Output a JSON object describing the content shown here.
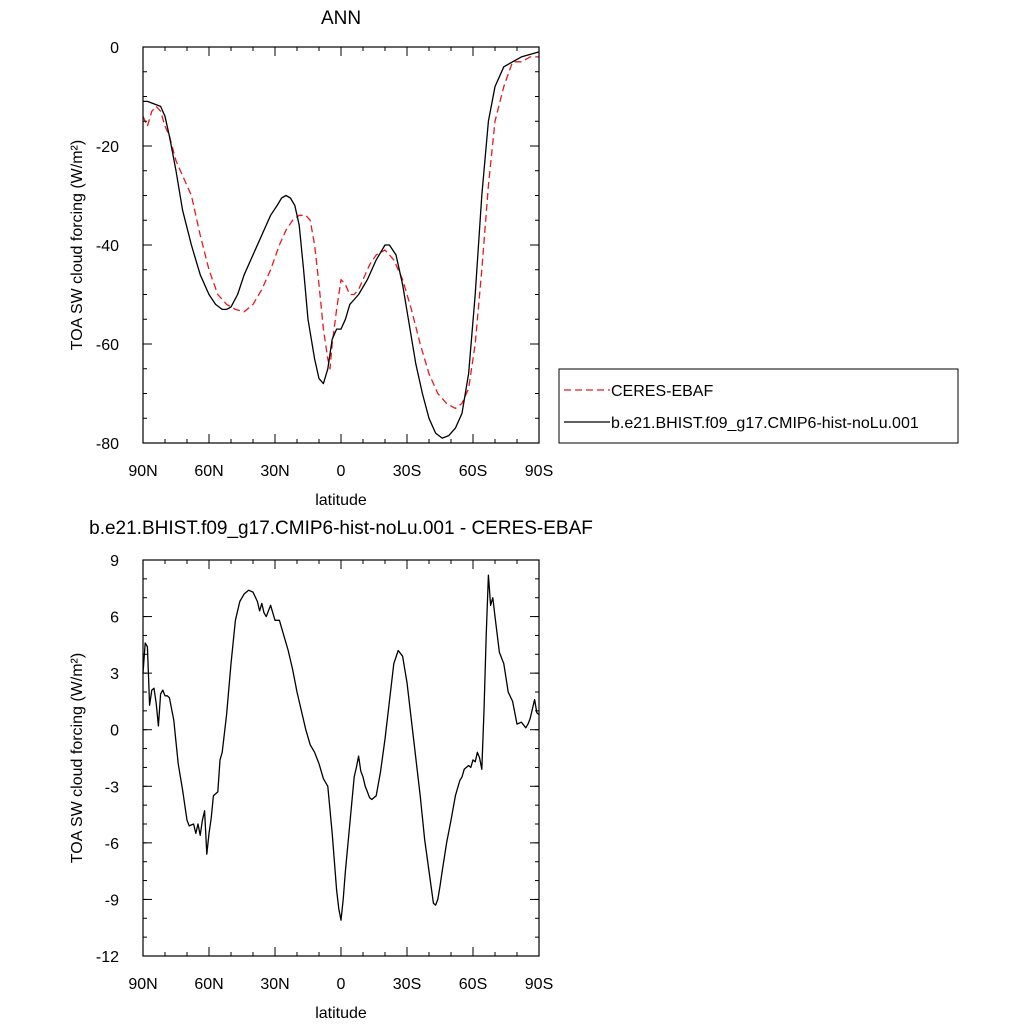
{
  "chart_data": [
    {
      "type": "line",
      "title": "ANN",
      "xlabel": "latitude",
      "ylabel": "TOA SW cloud forcing (W/m²)",
      "ylim": [
        -80,
        0
      ],
      "xlim": [
        90,
        -90
      ],
      "x_ticks": [
        "90N",
        "60N",
        "30N",
        "0",
        "30S",
        "60S",
        "90S"
      ],
      "y_ticks": [
        "0",
        "-20",
        "-40",
        "-60",
        "-80"
      ],
      "legend_position": "right",
      "series": [
        {
          "name": "CERES-EBAF",
          "color": "#e41a1c",
          "dash": "dashed",
          "x": [
            90,
            88,
            86,
            84,
            82,
            80,
            78,
            75,
            72,
            68,
            64,
            60,
            56,
            52,
            48,
            44,
            40,
            36,
            32,
            28,
            25,
            22,
            19,
            16,
            14,
            12,
            10,
            8,
            6,
            5,
            4,
            2,
            0,
            -2,
            -4,
            -6,
            -8,
            -10,
            -13,
            -16,
            -20,
            -24,
            -28,
            -32,
            -36,
            -40,
            -44,
            -48,
            -52,
            -55,
            -58,
            -61,
            -64,
            -67,
            -70,
            -74,
            -78,
            -82,
            -86,
            -90
          ],
          "y": [
            -14,
            -16,
            -13,
            -12,
            -13,
            -16,
            -18,
            -23,
            -26,
            -30,
            -38,
            -45,
            -50,
            -52,
            -53,
            -53.5,
            -52,
            -49,
            -45,
            -40,
            -37,
            -35,
            -34,
            -34,
            -35,
            -40,
            -48,
            -57,
            -63,
            -65,
            -60,
            -53,
            -47,
            -48,
            -50,
            -50,
            -49,
            -47,
            -44,
            -42,
            -41,
            -43,
            -47,
            -53,
            -60,
            -66,
            -70,
            -72,
            -73,
            -72,
            -69,
            -60,
            -45,
            -28,
            -15,
            -8,
            -3,
            -3,
            -2,
            -2
          ]
        },
        {
          "name": "b.e21.BHIST.f09_g17.CMIP6-hist-noLu.001",
          "color": "#000000",
          "dash": "solid",
          "x": [
            90,
            88,
            85,
            82,
            80,
            78,
            75,
            72,
            68,
            64,
            60,
            57,
            54,
            52,
            50,
            47,
            44,
            40,
            36,
            32,
            29,
            27,
            25,
            23,
            21,
            19,
            17,
            15,
            12,
            10,
            8,
            6,
            5,
            4,
            2,
            0,
            -2,
            -4,
            -6,
            -8,
            -12,
            -16,
            -20,
            -22,
            -25,
            -28,
            -31,
            -34,
            -37,
            -40,
            -43,
            -46,
            -49,
            -52,
            -55,
            -58,
            -61,
            -64,
            -67,
            -70,
            -74,
            -78,
            -82,
            -86,
            -90
          ],
          "y": [
            -11,
            -11,
            -11.5,
            -12,
            -14,
            -18,
            -25,
            -33,
            -40,
            -46,
            -50,
            -52,
            -53,
            -53,
            -52.5,
            -50,
            -46,
            -42,
            -38,
            -34,
            -32,
            -30.5,
            -30,
            -30.5,
            -32,
            -36,
            -45,
            -55,
            -63,
            -67,
            -68,
            -65,
            -62,
            -59,
            -57,
            -57,
            -55,
            -52,
            -51,
            -50,
            -47,
            -43,
            -40,
            -40,
            -42,
            -48,
            -56,
            -64,
            -70,
            -75,
            -78,
            -79,
            -78.5,
            -77,
            -74,
            -66,
            -50,
            -30,
            -15,
            -8,
            -4,
            -3,
            -2,
            -1.5,
            -1
          ]
        }
      ]
    },
    {
      "type": "line",
      "title": "b.e21.BHIST.f09_g17.CMIP6-hist-noLu.001 - CERES-EBAF",
      "xlabel": "latitude",
      "ylabel": "TOA SW cloud forcing (W/m²)",
      "ylim": [
        -12,
        9
      ],
      "xlim": [
        90,
        -90
      ],
      "x_ticks": [
        "90N",
        "60N",
        "30N",
        "0",
        "30S",
        "60S",
        "90S"
      ],
      "y_ticks": [
        "9",
        "6",
        "3",
        "0",
        "-3",
        "-6",
        "-9",
        "-12"
      ],
      "series": [
        {
          "color": "#000000",
          "dash": "solid",
          "x": [
            90,
            89,
            88,
            87,
            86,
            85,
            84,
            83,
            82,
            81,
            80,
            79,
            78,
            76,
            74,
            72,
            70,
            69,
            67,
            66,
            65,
            64,
            63,
            62,
            61,
            60,
            59,
            58,
            56,
            55,
            54,
            52,
            50,
            48,
            46,
            45,
            44,
            42,
            40,
            38,
            37,
            36,
            35,
            34,
            32,
            30,
            28,
            26,
            24,
            22,
            20,
            18,
            16,
            14,
            12,
            10,
            8,
            6,
            4,
            2,
            1,
            0,
            -1,
            -2,
            -4,
            -6,
            -7,
            -8,
            -9,
            -10,
            -11,
            -12,
            -13,
            -14,
            -16,
            -18,
            -20,
            -22,
            -24,
            -26,
            -28,
            -30,
            -32,
            -34,
            -36,
            -38,
            -40,
            -42,
            -43,
            -44,
            -45,
            -46,
            -48,
            -50,
            -52,
            -54,
            -55,
            -56,
            -58,
            -59,
            -60,
            -61,
            -62,
            -63,
            -64,
            -65,
            -66,
            -67,
            -68,
            -69,
            -70,
            -72,
            -74,
            -76,
            -78,
            -80,
            -82,
            -84,
            -85,
            -86,
            -88,
            -89,
            -90
          ],
          "y": [
            3,
            4.6,
            4.4,
            1.3,
            2.1,
            2.2,
            1.4,
            0.2,
            1.9,
            2.1,
            1.8,
            1.8,
            1.7,
            0.5,
            -1.8,
            -3.2,
            -4.8,
            -5.1,
            -5.0,
            -5.5,
            -5.0,
            -5.6,
            -4.8,
            -4.3,
            -6.6,
            -5.5,
            -4.7,
            -3.5,
            -3.3,
            -1.6,
            -1.2,
            0.8,
            3.5,
            5.8,
            6.8,
            7.0,
            7.2,
            7.4,
            7.3,
            6.8,
            6.3,
            6.7,
            6.2,
            6.0,
            6.6,
            5.8,
            5.8,
            5.0,
            4.2,
            3.2,
            2.0,
            1.0,
            0.0,
            -0.8,
            -1.2,
            -1.8,
            -2.6,
            -3.0,
            -5.5,
            -8.5,
            -9.5,
            -10.1,
            -9.0,
            -7.5,
            -5.0,
            -2.5,
            -2.0,
            -1.4,
            -2.2,
            -2.5,
            -3.0,
            -3.3,
            -3.6,
            -3.7,
            -3.5,
            -2.2,
            -0.5,
            1.5,
            3.5,
            4.2,
            3.9,
            2.5,
            0.5,
            -1.5,
            -3.5,
            -5.8,
            -7.5,
            -9.2,
            -9.3,
            -9.0,
            -8.3,
            -7.5,
            -6.0,
            -4.8,
            -3.5,
            -2.7,
            -2.5,
            -2.1,
            -1.9,
            -2.0,
            -1.6,
            -1.7,
            -1.2,
            -1.5,
            -2.1,
            1.0,
            5.0,
            8.2,
            6.6,
            7.0,
            6.0,
            4.1,
            3.5,
            2.0,
            1.5,
            0.3,
            0.4,
            0.1,
            0.3,
            0.6,
            1.6,
            0.9,
            0.8
          ]
        }
      ]
    }
  ]
}
